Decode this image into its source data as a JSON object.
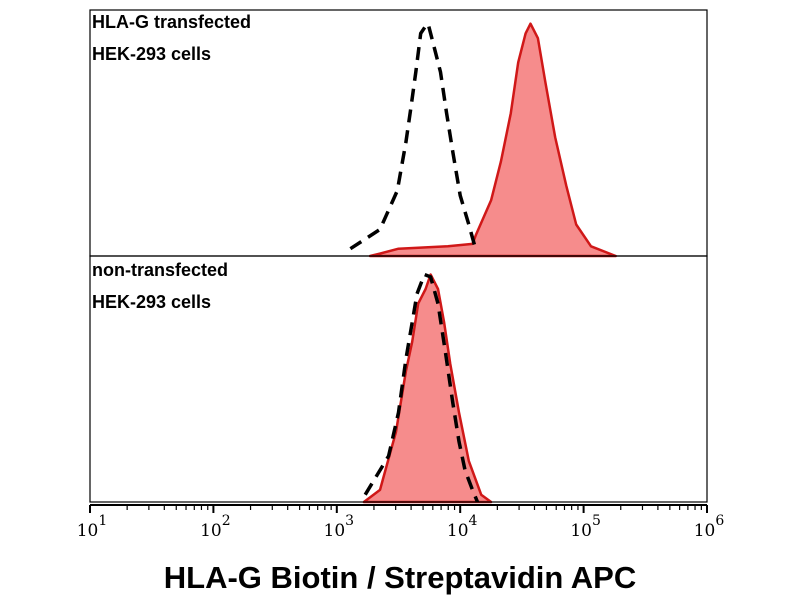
{
  "chart_data": {
    "type": "area",
    "xlabel": "HLA-G Biotin / Streptavidin APC",
    "xscale": "log",
    "xlim_log10": [
      1,
      6
    ],
    "x_tick_labels": [
      {
        "base": "10",
        "exp": "1"
      },
      {
        "base": "10",
        "exp": "2"
      },
      {
        "base": "10",
        "exp": "3"
      },
      {
        "base": "10",
        "exp": "4"
      },
      {
        "base": "10",
        "exp": "5"
      },
      {
        "base": "10",
        "exp": "6"
      }
    ],
    "ylim": [
      0,
      100
    ],
    "colors": {
      "fill": "#f68c8c",
      "stroke": "#d01818",
      "control": "#000000"
    },
    "panels": [
      {
        "label_lines": [
          "HLA-G transfected",
          "HEK-293 cells"
        ],
        "series": [
          {
            "name": "control (dashed)",
            "style": "dashed",
            "points_log10x_pct": [
              [
                3.11,
                3
              ],
              [
                3.35,
                11
              ],
              [
                3.49,
                27
              ],
              [
                3.56,
                47
              ],
              [
                3.6,
                61
              ],
              [
                3.64,
                76
              ],
              [
                3.68,
                92
              ],
              [
                3.72,
                95
              ],
              [
                3.74,
                96
              ],
              [
                3.78,
                88
              ],
              [
                3.84,
                76
              ],
              [
                3.89,
                59
              ],
              [
                3.94,
                43
              ],
              [
                4.0,
                25
              ],
              [
                4.07,
                13
              ],
              [
                4.13,
                2
              ]
            ]
          },
          {
            "name": "HLA-G stained (filled)",
            "style": "filled",
            "points_log10x_pct": [
              [
                3.27,
                0
              ],
              [
                3.35,
                1
              ],
              [
                3.5,
                3
              ],
              [
                3.9,
                4
              ],
              [
                4.1,
                5
              ],
              [
                4.13,
                9
              ],
              [
                4.25,
                23
              ],
              [
                4.33,
                39
              ],
              [
                4.41,
                59
              ],
              [
                4.47,
                80
              ],
              [
                4.53,
                92
              ],
              [
                4.57,
                96
              ],
              [
                4.63,
                90
              ],
              [
                4.69,
                72
              ],
              [
                4.77,
                49
              ],
              [
                4.86,
                29
              ],
              [
                4.94,
                13
              ],
              [
                5.06,
                4
              ],
              [
                5.26,
                0
              ]
            ]
          }
        ]
      },
      {
        "label_lines": [
          "non-transfected",
          "HEK-293 cells"
        ],
        "series": [
          {
            "name": "control (dashed)",
            "style": "dashed",
            "points_log10x_pct": [
              [
                3.23,
                3
              ],
              [
                3.42,
                19
              ],
              [
                3.5,
                37
              ],
              [
                3.56,
                59
              ],
              [
                3.61,
                74
              ],
              [
                3.65,
                86
              ],
              [
                3.71,
                94
              ],
              [
                3.76,
                93
              ],
              [
                3.82,
                82
              ],
              [
                3.88,
                62
              ],
              [
                3.94,
                41
              ],
              [
                3.99,
                25
              ],
              [
                4.04,
                13
              ],
              [
                4.1,
                5
              ],
              [
                4.14,
                0
              ]
            ]
          },
          {
            "name": "HLA-G stained (filled)",
            "style": "filled",
            "points_log10x_pct": [
              [
                3.22,
                0
              ],
              [
                3.35,
                5
              ],
              [
                3.48,
                29
              ],
              [
                3.56,
                54
              ],
              [
                3.61,
                66
              ],
              [
                3.66,
                82
              ],
              [
                3.72,
                88
              ],
              [
                3.76,
                94
              ],
              [
                3.82,
                88
              ],
              [
                3.87,
                74
              ],
              [
                3.92,
                57
              ],
              [
                3.99,
                37
              ],
              [
                4.07,
                17
              ],
              [
                4.17,
                3
              ],
              [
                4.25,
                0
              ]
            ]
          }
        ]
      }
    ]
  }
}
